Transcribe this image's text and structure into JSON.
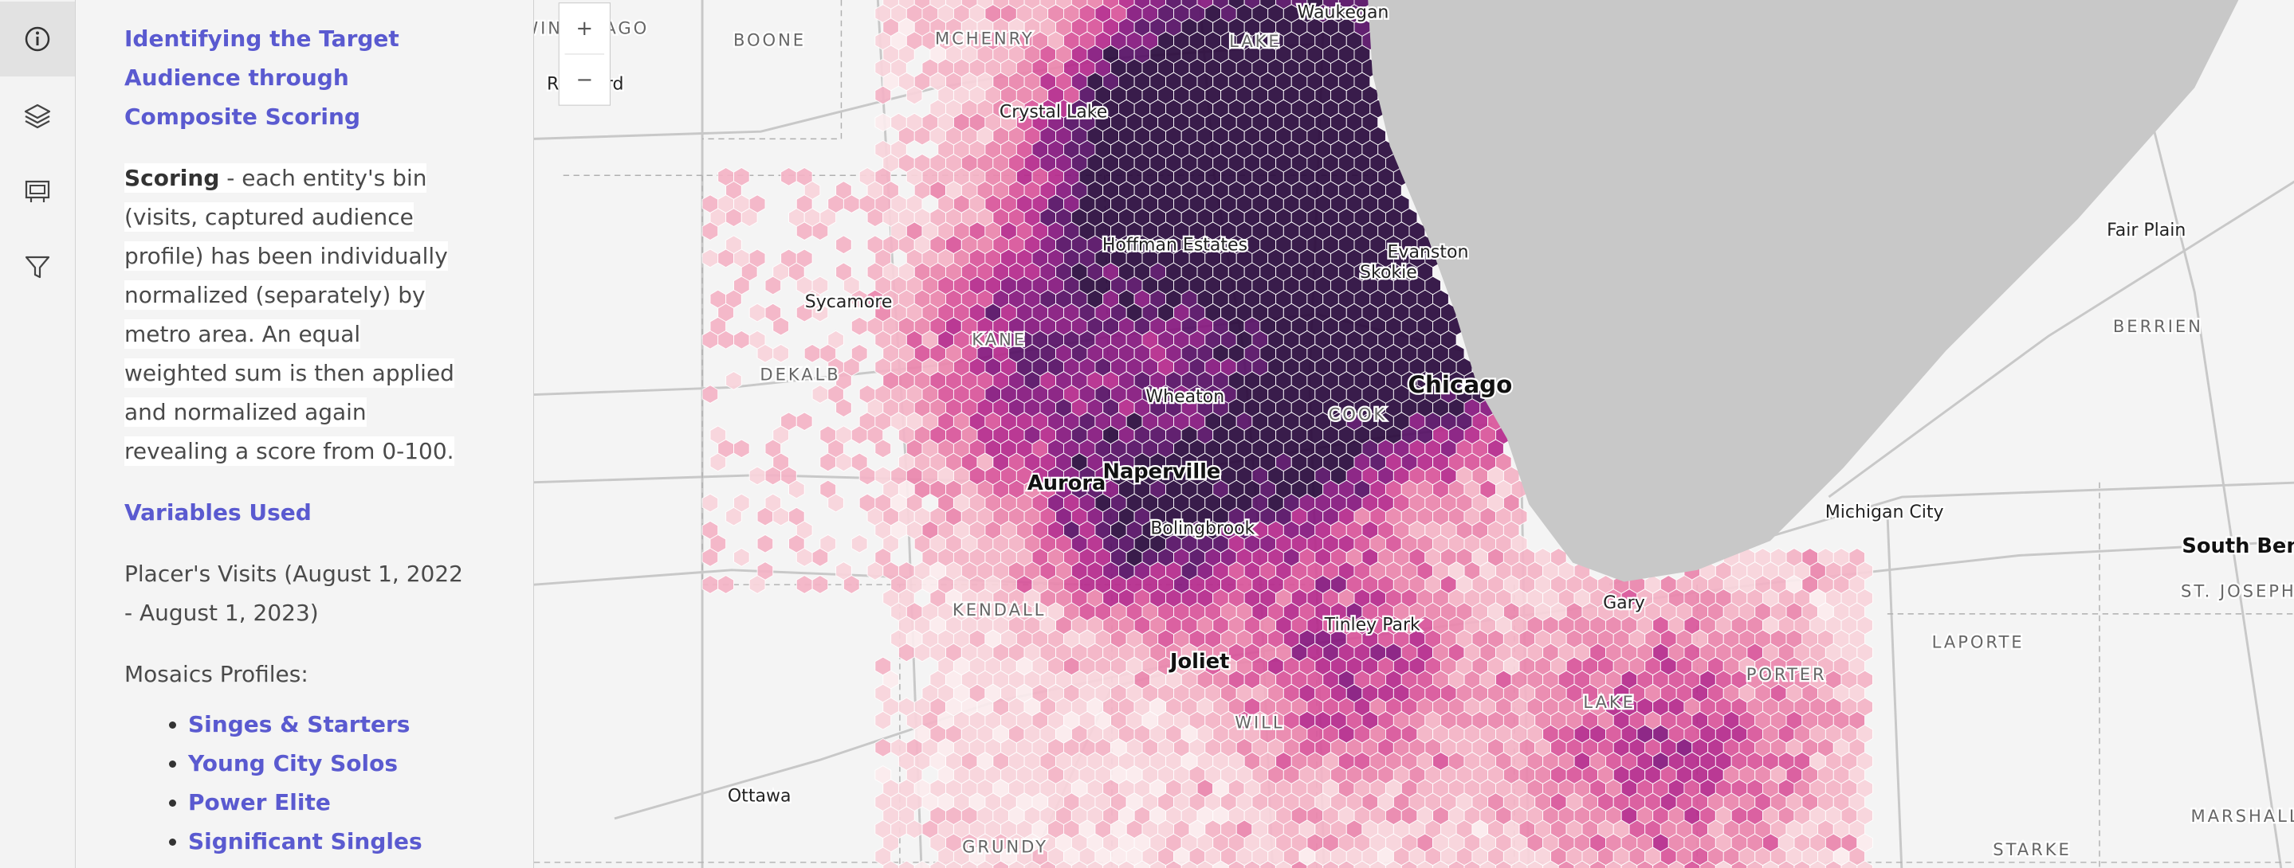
{
  "sidebar": {
    "title": "Identifying the Target Audience through Composite Scoring",
    "scoring_term": "Scoring",
    "scoring_text": " - each entity's bin (visits, captured audience profile) has been individually normalized (separately) by metro area. An equal weighted sum is then applied and normalized again revealing a score from 0-100.",
    "variables_heading": "Variables Used",
    "visits": "Placer's Visits (August 1, 2022 - August 1, 2023)",
    "mosaics_label": "Mosaics Profiles:",
    "profiles": [
      "Singes & Starters",
      "Young City Solos",
      "Power Elite",
      "Significant Singles"
    ]
  },
  "map": {
    "zoom_in": "+",
    "zoom_out": "−",
    "labels": [
      "WINNEBAGO",
      "Rockford",
      "BOONE",
      "MCHENRY",
      "LAKE",
      "Waukegan",
      "Crystal Lake",
      "Hoffman Estates",
      "Evanston",
      "Skokie",
      "Sycamore",
      "KANE",
      "DEKALB",
      "Chicago",
      "Wheaton",
      "COOK",
      "Aurora",
      "Naperville",
      "Bolingbrook",
      "KENDALL",
      "Tinley Park",
      "Joliet",
      "Gary",
      "WILL",
      "LAKE",
      "PORTER",
      "LAPORTE",
      "Michigan City",
      "Fair Plain",
      "BERRIEN",
      "South Bend",
      "ST. JOSEPH",
      "Ottawa",
      "GRUNDY",
      "STARKE",
      "MARSHALL"
    ]
  }
}
